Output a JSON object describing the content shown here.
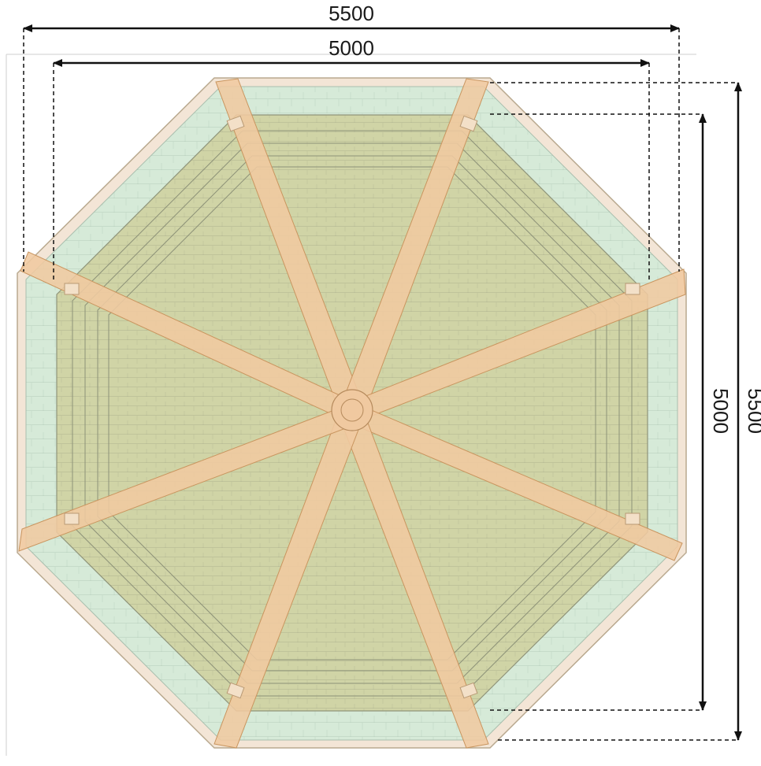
{
  "drawing": {
    "type": "gazebo-roof-plan",
    "shape": "octagon",
    "rafter_count": 8,
    "colors": {
      "roof_field": "#d0d4a6",
      "eave_band": "#d6ead8",
      "rafter": "#f0c9a0",
      "fascia": "#f3e5d6",
      "line": "#9a9a86",
      "dimension": "#111111"
    }
  },
  "dimensions": {
    "overall_width": "5500",
    "inner_width": "5000",
    "inner_height": "5000",
    "overall_height": "5500"
  }
}
